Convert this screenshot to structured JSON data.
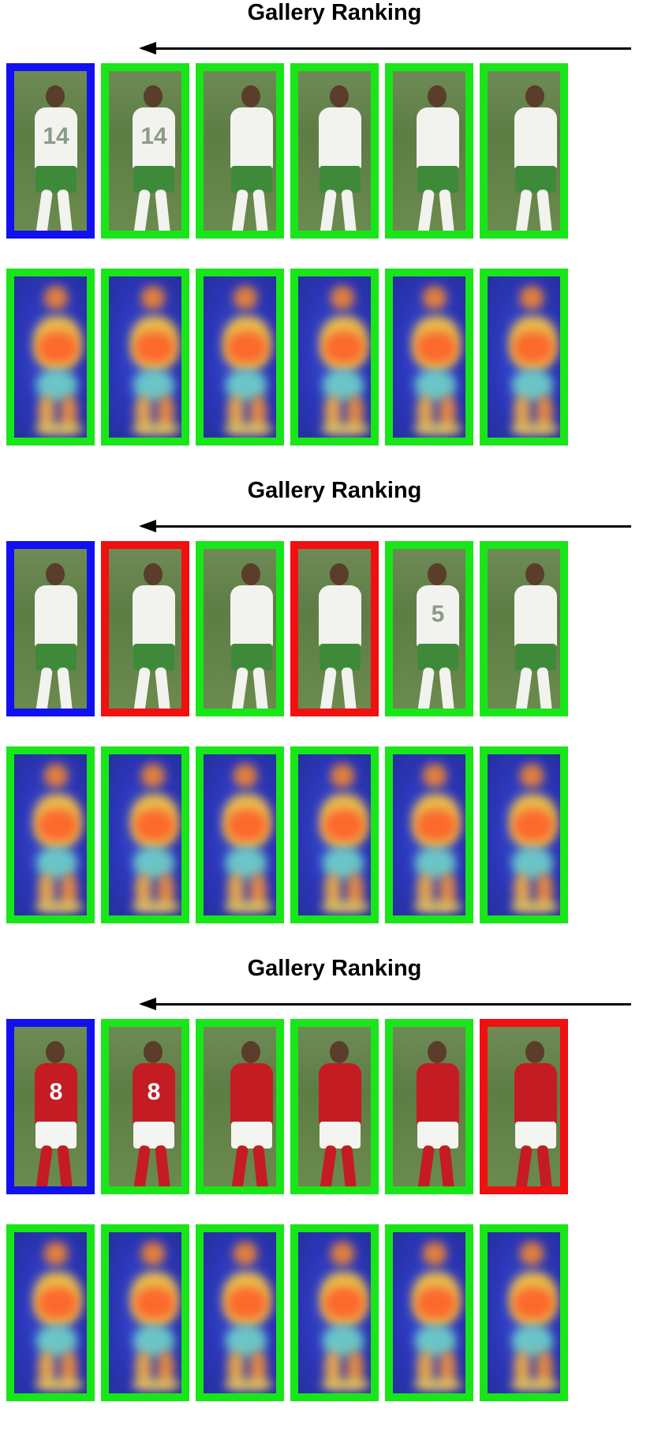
{
  "groups": [
    {
      "title": "Gallery Ranking",
      "photos": [
        {
          "kind": "query",
          "jersey": "white",
          "number": "14"
        },
        {
          "kind": "correct",
          "jersey": "white",
          "number": "14"
        },
        {
          "kind": "correct",
          "jersey": "white",
          "number": ""
        },
        {
          "kind": "correct",
          "jersey": "white",
          "number": ""
        },
        {
          "kind": "correct",
          "jersey": "white",
          "number": ""
        },
        {
          "kind": "correct",
          "jersey": "white",
          "number": ""
        }
      ]
    },
    {
      "title": "Gallery Ranking",
      "photos": [
        {
          "kind": "query",
          "jersey": "white",
          "number": ""
        },
        {
          "kind": "wrong",
          "jersey": "white",
          "number": ""
        },
        {
          "kind": "correct",
          "jersey": "white",
          "number": ""
        },
        {
          "kind": "wrong",
          "jersey": "white",
          "number": ""
        },
        {
          "kind": "correct",
          "jersey": "white",
          "number": "5"
        },
        {
          "kind": "correct",
          "jersey": "white",
          "number": ""
        }
      ]
    },
    {
      "title": "Gallery Ranking",
      "photos": [
        {
          "kind": "query",
          "jersey": "red",
          "number": "8"
        },
        {
          "kind": "correct",
          "jersey": "red",
          "number": "8"
        },
        {
          "kind": "correct",
          "jersey": "red",
          "number": ""
        },
        {
          "kind": "correct",
          "jersey": "red",
          "number": ""
        },
        {
          "kind": "correct",
          "jersey": "red",
          "number": ""
        },
        {
          "kind": "wrong",
          "jersey": "red",
          "number": ""
        }
      ]
    }
  ],
  "colors": {
    "query_border": "#1010f0",
    "correct_border": "#19e619",
    "wrong_border": "#f01010",
    "white_jersey": "#f2f2ee",
    "white_shorts": "#3f8a3a",
    "red_jersey": "#c41c22",
    "red_shorts": "#f4f4f0"
  }
}
